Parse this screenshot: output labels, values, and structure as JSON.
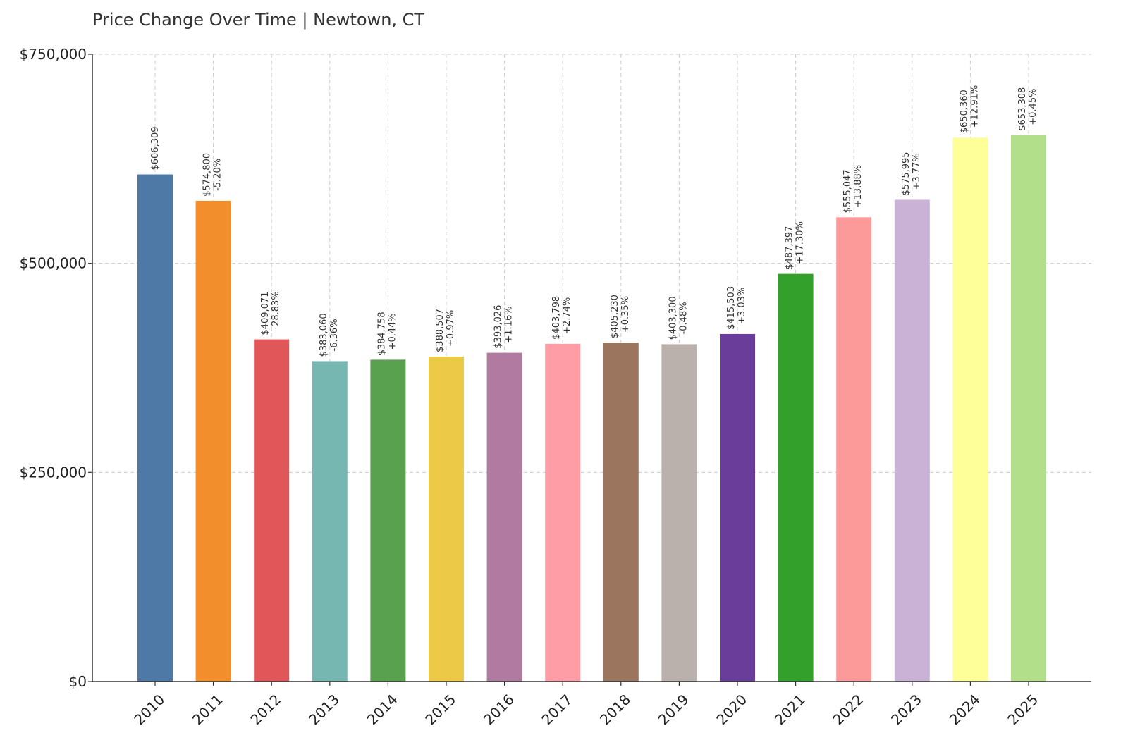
{
  "chart_data": {
    "type": "bar",
    "title": "Price Change Over Time | Newtown, CT",
    "xlabel": "",
    "ylabel": "",
    "ylim": [
      0,
      750000
    ],
    "yticks": [
      0,
      250000,
      500000,
      750000
    ],
    "ytick_labels": [
      "$0",
      "$250,000",
      "$500,000",
      "$750,000"
    ],
    "grid": true,
    "categories": [
      "2010",
      "2011",
      "2012",
      "2013",
      "2014",
      "2015",
      "2016",
      "2017",
      "2018",
      "2019",
      "2020",
      "2021",
      "2022",
      "2023",
      "2024",
      "2025"
    ],
    "values": [
      606309,
      574800,
      409071,
      383060,
      384758,
      388507,
      393026,
      403798,
      405230,
      403300,
      415503,
      487397,
      555047,
      575995,
      650360,
      653308
    ],
    "value_labels": [
      "$606,309",
      "$574,800",
      "$409,071",
      "$383,060",
      "$384,758",
      "$388,507",
      "$393,026",
      "$403,798",
      "$405,230",
      "$403,300",
      "$415,503",
      "$487,397",
      "$555,047",
      "$575,995",
      "$650,360",
      "$653,308"
    ],
    "change_labels": [
      "",
      "-5.20%",
      "-28.83%",
      "-6.36%",
      "+0.44%",
      "+0.97%",
      "+1.16%",
      "+2.74%",
      "+0.35%",
      "-0.48%",
      "+3.03%",
      "+17.30%",
      "+13.88%",
      "+3.77%",
      "+12.91%",
      "+0.45%"
    ],
    "colors": [
      "#4e79a7",
      "#f28e2b",
      "#e15759",
      "#76b7b2",
      "#59a14f",
      "#edc948",
      "#b07aa1",
      "#ff9da7",
      "#9c755f",
      "#bab0ac",
      "#6a3d9a",
      "#33a02c",
      "#fb9a99",
      "#cab2d6",
      "#ffff99",
      "#b2df8a"
    ]
  }
}
